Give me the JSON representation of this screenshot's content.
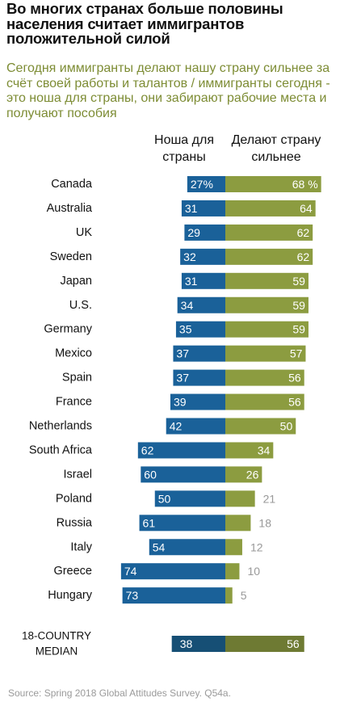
{
  "title": "Во многих странах больше половины населения считает иммигрантов положительной силой",
  "subtitle": "Сегодня иммигранты делают нашу страну сильнее за счёт своей работы и талантов / иммигранты сегодня - это ноша для страны, они забирают рабочие места и получают пособия",
  "headers": {
    "burden": "Ноша для страны",
    "stronger": "Делают страну сильнее"
  },
  "source": "Source: Spring 2018 Global Attitudes Survey. Q54a.",
  "colors": {
    "burden": "#1a6199",
    "stronger": "#8c9c40",
    "median_burden": "#164f75",
    "median_stronger": "#6e7a33",
    "outside_label": "#999999"
  },
  "chart_data": {
    "type": "bar",
    "orientation": "diverging-horizontal",
    "categories": [
      "Canada",
      "Australia",
      "UK",
      "Sweden",
      "Japan",
      "U.S.",
      "Germany",
      "Mexico",
      "Spain",
      "France",
      "Netherlands",
      "South Africa",
      "Israel",
      "Poland",
      "Russia",
      "Italy",
      "Greece",
      "Hungary"
    ],
    "series": [
      {
        "name": "Ноша для страны",
        "values": [
          27,
          31,
          29,
          32,
          31,
          34,
          35,
          37,
          37,
          39,
          42,
          62,
          60,
          50,
          61,
          54,
          74,
          73
        ],
        "labels": [
          "27%",
          "31",
          "29",
          "32",
          "31",
          "34",
          "35",
          "37",
          "37",
          "39",
          "42",
          "62",
          "60",
          "50",
          "61",
          "54",
          "74",
          "73"
        ]
      },
      {
        "name": "Делают страну сильнее",
        "values": [
          68,
          64,
          62,
          62,
          59,
          59,
          59,
          57,
          56,
          56,
          50,
          34,
          26,
          21,
          18,
          12,
          10,
          5
        ],
        "labels": [
          "68 %",
          "64",
          "62",
          "62",
          "59",
          "59",
          "59",
          "57",
          "56",
          "56",
          "50",
          "34",
          "26",
          "21",
          "18",
          "12",
          "10",
          "5"
        ]
      }
    ],
    "median": {
      "label_line1": "18-COUNTRY",
      "label_line2": "MEDIAN",
      "burden": 38,
      "stronger": 56
    }
  }
}
